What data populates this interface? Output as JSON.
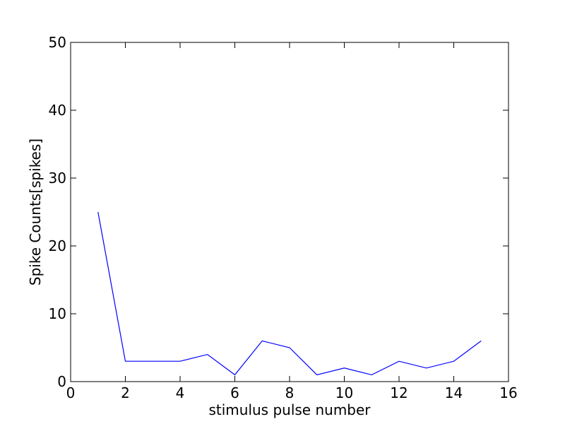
{
  "chart_data": {
    "type": "line",
    "title": "",
    "xlabel": "stimulus pulse number",
    "ylabel": "Spike Counts[spikes]",
    "xlim": [
      0,
      16
    ],
    "ylim": [
      0,
      50
    ],
    "xticks": [
      0,
      2,
      4,
      6,
      8,
      10,
      12,
      14,
      16
    ],
    "yticks": [
      0,
      10,
      20,
      30,
      40,
      50
    ],
    "grid": false,
    "legend": "none",
    "series": [
      {
        "color": "#0000ff",
        "x": [
          1,
          2,
          3,
          4,
          5,
          6,
          7,
          8,
          9,
          10,
          11,
          12,
          13,
          14,
          15
        ],
        "y": [
          25,
          3,
          3,
          3,
          4,
          1,
          6,
          5,
          1,
          2,
          1,
          3,
          2,
          3,
          6
        ]
      }
    ]
  }
}
